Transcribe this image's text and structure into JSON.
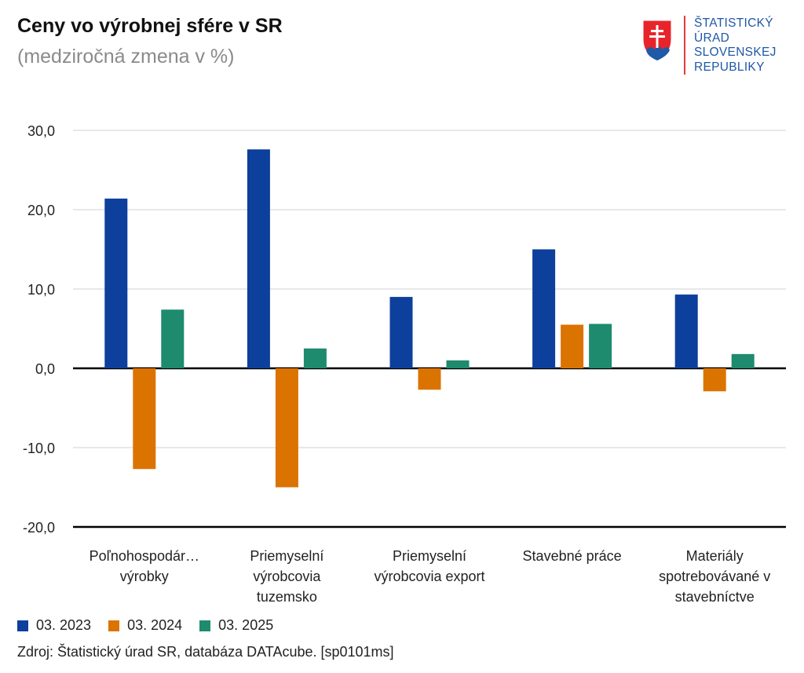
{
  "header": {
    "title": "Ceny vo výrobnej sfére v SR",
    "subtitle": "(medziročná zmena v %)"
  },
  "logo": {
    "lines": [
      "ŠTATISTICKÝ",
      "ÚRAD",
      "SLOVENSKEJ",
      "REPUBLIKY"
    ]
  },
  "chart_data": {
    "type": "bar",
    "title": "Ceny vo výrobnej sfére v SR",
    "subtitle": "(medziročná zmena v %)",
    "xlabel": "",
    "ylabel": "",
    "ylim": [
      -20,
      30
    ],
    "yticks": [
      30,
      20,
      10,
      0,
      -10,
      -20
    ],
    "ytick_labels": [
      "30,0",
      "20,0",
      "10,0",
      "0,0",
      "-10,0",
      "-20,0"
    ],
    "grid": true,
    "legend": "bottom-left",
    "categories": [
      [
        "Poľnohospodár…",
        "výrobky"
      ],
      [
        "Priemyselní",
        "výrobcovia",
        "tuzemsko"
      ],
      [
        "Priemyselní",
        "výrobcovia export"
      ],
      [
        "Stavebné práce"
      ],
      [
        "Materiály",
        "spotrebovávané v",
        "stavebníctve"
      ]
    ],
    "series": [
      {
        "name": "03. 2023",
        "color": "#0d3f9c",
        "values": [
          21.4,
          27.6,
          9.0,
          15.0,
          9.3
        ]
      },
      {
        "name": "03. 2024",
        "color": "#db7300",
        "values": [
          -12.7,
          -15.0,
          -2.7,
          5.5,
          -2.9
        ]
      },
      {
        "name": "03. 2025",
        "color": "#1e8a6e",
        "values": [
          7.4,
          2.5,
          1.0,
          5.6,
          1.8
        ]
      }
    ]
  },
  "footer": {
    "source": "Zdroj: Štatistický úrad SR, databáza DATAcube. [sp0101ms]"
  }
}
